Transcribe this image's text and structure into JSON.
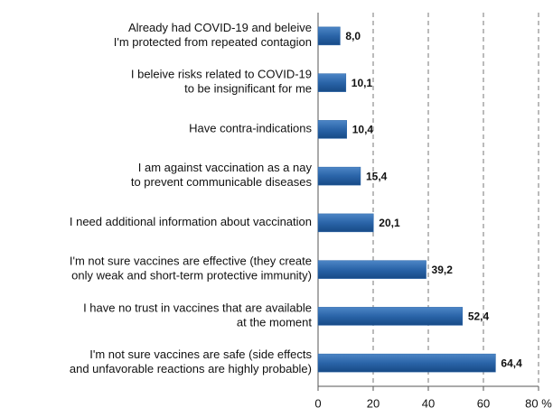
{
  "chart_data": {
    "type": "barh",
    "categories": [
      "Already had COVID-19 and beleive\nI'm protected from repeated contagion",
      "I beleive risks related to COVID-19\nto be insignificant for me",
      "Have contra-indications",
      "I am against vaccination as a nay\nto prevent communicable diseases",
      "I need additional information about vaccination",
      "I'm not sure vaccines are effective (they create\nonly weak and short-term protective immunity)",
      "I have no trust in vaccines that are available\nat the moment",
      "I'm not sure vaccines are safe (side effects\nand unfavorable reactions are highly probable)"
    ],
    "values": [
      8.0,
      10.1,
      10.4,
      15.4,
      20.1,
      39.2,
      52.4,
      64.4
    ],
    "value_labels": [
      "8,0",
      "10,1",
      "10,4",
      "15,4",
      "20,1",
      "39,2",
      "52,4",
      "64,4"
    ],
    "color": "#2a64a8",
    "xlim": [
      0,
      80
    ],
    "xticks": [
      0,
      20,
      40,
      60,
      {
        "value": 80,
        "label": "80 %"
      }
    ],
    "grid": true
  }
}
